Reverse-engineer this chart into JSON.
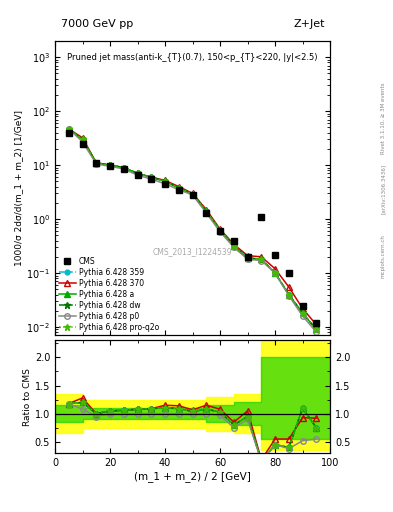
{
  "title_top": "7000 GeV pp",
  "title_right": "Z+Jet",
  "annotation": "Pruned jet mass(anti-k_{T}(0.7), 150<p_{T}<220, |y|<2.5)",
  "watermark": "CMS_2013_I1224539",
  "rivet_label": "Rivet 3.1.10, ≥ 3M events",
  "arxiv_label": "[arXiv:1306.3436]",
  "mcplots_label": "mcplots.cern.ch",
  "ylabel_main": "1000/σ 2dσ/d(m_1 + m_2) [1/GeV]",
  "ylabel_ratio": "Ratio to CMS",
  "xlabel": "(m_1 + m_2) / 2 [GeV]",
  "xlim": [
    0,
    100
  ],
  "ylim_main": [
    0.007,
    2000
  ],
  "ylim_ratio": [
    0.3,
    2.3
  ],
  "cms_x": [
    5,
    10,
    15,
    20,
    25,
    30,
    35,
    40,
    45,
    50,
    55,
    60,
    65,
    70,
    75,
    80,
    85,
    90,
    95
  ],
  "cms_y": [
    40,
    25,
    11,
    9.5,
    8.5,
    6.5,
    5.5,
    4.5,
    3.5,
    2.8,
    1.3,
    0.6,
    0.4,
    0.2,
    1.1,
    0.22,
    0.1,
    0.025,
    0.012
  ],
  "py359_x": [
    5,
    10,
    15,
    20,
    25,
    30,
    35,
    40,
    45,
    50,
    55,
    60,
    65,
    70,
    75,
    80,
    85,
    90,
    95
  ],
  "py359_y": [
    47,
    30,
    11,
    10,
    9,
    7,
    6,
    5,
    3.8,
    2.9,
    1.4,
    0.62,
    0.32,
    0.19,
    0.18,
    0.1,
    0.04,
    0.018,
    0.009
  ],
  "py370_x": [
    5,
    10,
    15,
    20,
    25,
    30,
    35,
    40,
    45,
    50,
    55,
    60,
    65,
    70,
    75,
    80,
    85,
    90,
    95
  ],
  "py370_y": [
    47,
    32,
    11,
    10,
    9,
    7,
    6,
    5.2,
    4.0,
    3.0,
    1.5,
    0.65,
    0.34,
    0.21,
    0.2,
    0.12,
    0.055,
    0.022,
    0.011
  ],
  "pya_x": [
    5,
    10,
    15,
    20,
    25,
    30,
    35,
    40,
    45,
    50,
    55,
    60,
    65,
    70,
    75,
    80,
    85,
    90,
    95
  ],
  "pya_y": [
    47,
    30,
    11,
    10,
    9,
    7,
    6,
    5,
    3.8,
    2.9,
    1.4,
    0.62,
    0.32,
    0.19,
    0.18,
    0.1,
    0.04,
    0.018,
    0.009
  ],
  "pydw_x": [
    5,
    10,
    15,
    20,
    25,
    30,
    35,
    40,
    45,
    50,
    55,
    60,
    65,
    70,
    75,
    80,
    85,
    90,
    95
  ],
  "pydw_y": [
    47,
    30,
    11,
    10,
    9,
    7,
    6,
    5,
    3.8,
    2.9,
    1.4,
    0.62,
    0.32,
    0.19,
    0.18,
    0.1,
    0.04,
    0.018,
    0.009
  ],
  "pyp0_x": [
    5,
    10,
    15,
    20,
    25,
    30,
    35,
    40,
    45,
    50,
    55,
    60,
    65,
    70,
    75,
    80,
    85,
    90,
    95
  ],
  "pyp0_y": [
    47,
    27,
    10.5,
    9.5,
    8.5,
    6.5,
    5.5,
    4.5,
    3.5,
    2.8,
    1.3,
    0.58,
    0.3,
    0.18,
    0.17,
    0.1,
    0.038,
    0.016,
    0.008
  ],
  "pyq2o_x": [
    5,
    10,
    15,
    20,
    25,
    30,
    35,
    40,
    45,
    50,
    55,
    60,
    65,
    70,
    75,
    80,
    85,
    90,
    95
  ],
  "pyq2o_y": [
    47,
    30,
    11,
    10,
    9,
    7,
    6,
    5,
    3.8,
    2.9,
    1.4,
    0.62,
    0.32,
    0.19,
    0.18,
    0.1,
    0.04,
    0.018,
    0.009
  ],
  "ratio_x": [
    5,
    10,
    15,
    20,
    25,
    30,
    35,
    40,
    45,
    50,
    55,
    60,
    65,
    70,
    75,
    80,
    85,
    90,
    95
  ],
  "ratio_py359": [
    1.18,
    1.2,
    1.0,
    1.05,
    1.06,
    1.08,
    1.09,
    1.11,
    1.09,
    1.04,
    1.08,
    1.03,
    0.8,
    0.95,
    0.16,
    0.45,
    0.4,
    1.1,
    0.75
  ],
  "ratio_py370": [
    1.18,
    1.28,
    1.0,
    1.05,
    1.06,
    1.08,
    1.09,
    1.15,
    1.14,
    1.07,
    1.15,
    1.08,
    0.85,
    1.05,
    0.18,
    0.55,
    0.55,
    0.93,
    0.92
  ],
  "ratio_pya": [
    1.18,
    1.2,
    1.0,
    1.05,
    1.06,
    1.08,
    1.09,
    1.11,
    1.09,
    1.04,
    1.08,
    1.03,
    0.8,
    0.95,
    0.16,
    0.45,
    0.4,
    1.1,
    0.75
  ],
  "ratio_pydw": [
    1.18,
    1.2,
    1.0,
    1.05,
    1.06,
    1.08,
    1.09,
    1.11,
    1.09,
    1.04,
    1.08,
    1.03,
    0.8,
    0.95,
    0.16,
    0.45,
    0.4,
    1.1,
    0.75
  ],
  "ratio_pyp0": [
    1.18,
    1.08,
    0.95,
    1.0,
    1.0,
    1.0,
    1.0,
    1.0,
    1.0,
    1.0,
    1.0,
    0.97,
    0.75,
    0.9,
    0.155,
    0.45,
    0.38,
    0.52,
    0.55
  ],
  "ratio_pyq2o": [
    1.18,
    1.2,
    1.0,
    1.05,
    1.06,
    1.08,
    1.09,
    1.11,
    1.09,
    1.04,
    1.08,
    1.03,
    0.8,
    0.95,
    0.16,
    0.45,
    0.4,
    1.1,
    0.75
  ],
  "band_x": [
    0,
    5,
    10,
    15,
    20,
    25,
    30,
    35,
    40,
    45,
    50,
    55,
    60,
    65,
    70,
    75,
    80,
    85,
    90,
    95,
    100
  ],
  "band_green_lo": [
    0.85,
    0.85,
    0.9,
    0.9,
    0.9,
    0.9,
    0.9,
    0.9,
    0.9,
    0.9,
    0.9,
    0.85,
    0.85,
    0.8,
    0.8,
    0.55,
    0.55,
    0.55,
    0.55,
    0.55,
    0.55
  ],
  "band_green_hi": [
    1.15,
    1.15,
    1.1,
    1.1,
    1.1,
    1.1,
    1.1,
    1.1,
    1.1,
    1.1,
    1.1,
    1.15,
    1.15,
    1.2,
    1.2,
    2.0,
    2.0,
    2.0,
    2.0,
    2.0,
    2.0
  ],
  "band_yellow_lo": [
    0.65,
    0.65,
    0.75,
    0.75,
    0.75,
    0.75,
    0.75,
    0.75,
    0.75,
    0.75,
    0.75,
    0.7,
    0.7,
    0.65,
    0.65,
    0.35,
    0.35,
    0.35,
    0.35,
    0.35,
    0.35
  ],
  "band_yellow_hi": [
    1.35,
    1.35,
    1.25,
    1.25,
    1.25,
    1.25,
    1.25,
    1.25,
    1.25,
    1.25,
    1.25,
    1.3,
    1.3,
    1.35,
    1.35,
    2.3,
    2.3,
    2.3,
    2.3,
    2.3,
    2.3
  ],
  "color_cms": "#000000",
  "color_py359": "#00BBCC",
  "color_py370": "#CC0000",
  "color_pya": "#00AA00",
  "color_pydw": "#007700",
  "color_pyp0": "#888888",
  "color_pyq2o": "#44BB00"
}
